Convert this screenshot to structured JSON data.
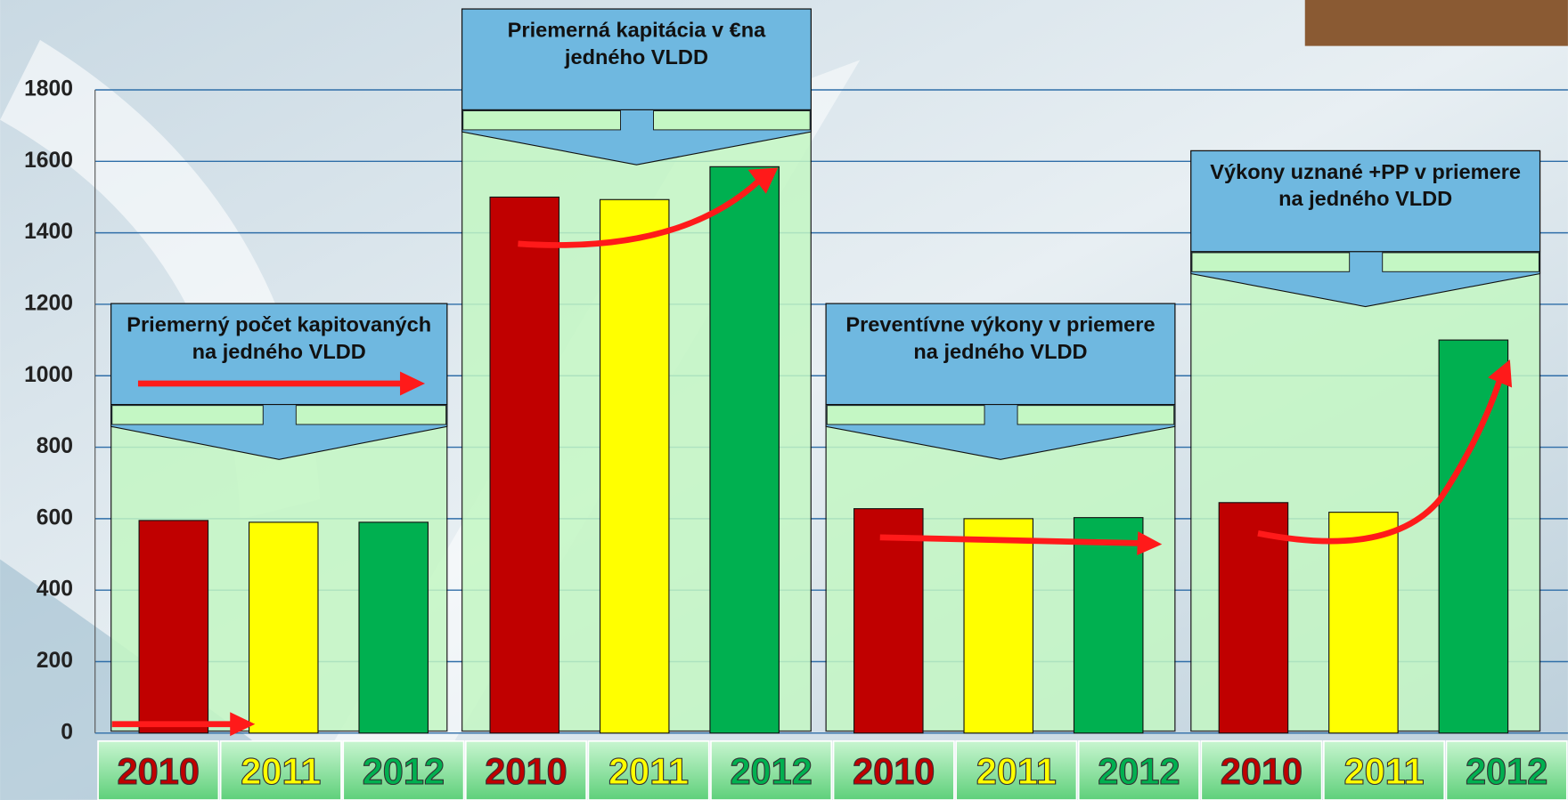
{
  "chart_data": {
    "type": "bar",
    "categories": [
      "Priemerný počet kapitovaných na jedného VLDD",
      "Priemerná kapitácia v €na jedného VLDD",
      "Preventívne výkony v priemere na jedného VLDD",
      "Výkony uznané +PP v priemere na jedného VLDD"
    ],
    "series": [
      {
        "name": "2010",
        "color": "#c00000",
        "values": [
          595,
          1500,
          628,
          645
        ]
      },
      {
        "name": "2011",
        "color": "#ffff00",
        "values": [
          590,
          1493,
          600,
          618
        ]
      },
      {
        "name": "2012",
        "color": "#00b050",
        "values": [
          590,
          1585,
          603,
          1100
        ]
      }
    ],
    "ylim": [
      0,
      1800
    ],
    "yticks": [
      0,
      200,
      400,
      600,
      800,
      1000,
      1200,
      1400,
      1600,
      1800
    ],
    "grid": true
  }
}
